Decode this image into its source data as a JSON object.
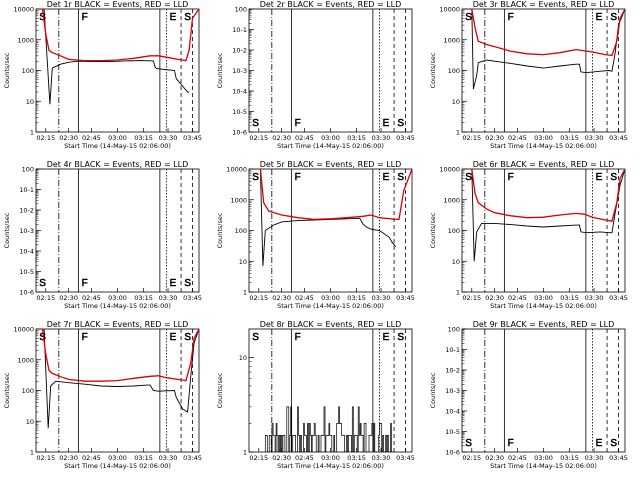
{
  "chart_data": [
    {
      "type": "line",
      "title": "Det 1r BLACK = Events, RED = LLD",
      "xlabel": "Start Time (14-May-15 02:06:00)",
      "ylabel": "Counts/sec",
      "ytick_labels": [
        "1",
        "10",
        "100",
        "1000",
        "10000"
      ],
      "ylim": [
        1,
        10000
      ],
      "yscale": "log",
      "xtick_labels": [
        "02:15",
        "02:30",
        "02:45",
        "03:00",
        "03:15",
        "03:30",
        "03:45"
      ],
      "markers": [
        "S",
        "F",
        "E",
        "S"
      ],
      "dark": true,
      "series": [
        {
          "color": "#000000",
          "x": [
            0,
            0.05,
            0.085,
            0.1,
            0.15,
            0.2,
            0.25,
            0.35,
            0.45,
            0.55,
            0.65,
            0.72,
            0.73,
            0.74,
            0.85,
            0.86,
            0.93,
            0.935,
            0.94
          ],
          "y": [
            10000,
            10000,
            8,
            120,
            160,
            185,
            200,
            195,
            195,
            205,
            210,
            205,
            130,
            115,
            100,
            55,
            20,
            20,
            20
          ]
        },
        {
          "color": "#dd0000",
          "x": [
            0,
            0.04,
            0.06,
            0.08,
            0.1,
            0.15,
            0.2,
            0.3,
            0.4,
            0.5,
            0.6,
            0.7,
            0.75,
            0.8,
            0.87,
            0.9,
            0.92,
            0.94,
            0.96,
            1.0
          ],
          "y": [
            10000,
            10000,
            1500,
            450,
            380,
            300,
            230,
            210,
            210,
            220,
            250,
            300,
            300,
            270,
            230,
            220,
            210,
            480,
            5000,
            10000
          ]
        }
      ]
    },
    {
      "type": "line",
      "title": "Det 2r BLACK = Events, RED = LLD",
      "xlabel": "Start Time (14-May-15 02:06:00)",
      "ylabel": "Counts/sec",
      "ytick_labels": [
        "10-6",
        "10-5",
        "10-4",
        "10-3",
        "10-2",
        "10-1",
        "100"
      ],
      "ylim": [
        1e-06,
        1
      ],
      "yscale": "log",
      "xtick_labels": [
        "02:15",
        "02:30",
        "02:45",
        "03:00",
        "03:15",
        "03:30",
        "03:45"
      ],
      "markers": [
        "S",
        "F",
        "E",
        "S"
      ],
      "dark": false,
      "series": []
    },
    {
      "type": "line",
      "title": "Det 3r BLACK = Events, RED = LLD",
      "xlabel": "Start Time (14-May-15 02:06:00)",
      "ylabel": "Counts/sec",
      "ytick_labels": [
        "1",
        "10",
        "100",
        "1000",
        "10000"
      ],
      "ylim": [
        1,
        10000
      ],
      "yscale": "log",
      "xtick_labels": [
        "02:15",
        "02:30",
        "02:45",
        "03:00",
        "03:15",
        "03:30",
        "03:45"
      ],
      "markers": [
        "S",
        "F",
        "E",
        "S"
      ],
      "dark": true,
      "series": [
        {
          "color": "#000000",
          "x": [
            0.03,
            0.06,
            0.07,
            0.09,
            0.1,
            0.15,
            0.2,
            0.3,
            0.4,
            0.5,
            0.6,
            0.7,
            0.72,
            0.73,
            0.76,
            0.85,
            0.9,
            0.92,
            0.94,
            0.96,
            1.0
          ],
          "y": [
            10000,
            10000,
            25,
            70,
            180,
            220,
            200,
            170,
            140,
            120,
            140,
            160,
            160,
            90,
            85,
            95,
            100,
            95,
            380,
            3000,
            10000
          ]
        },
        {
          "color": "#dd0000",
          "x": [
            0.03,
            0.06,
            0.08,
            0.1,
            0.15,
            0.2,
            0.3,
            0.4,
            0.5,
            0.6,
            0.7,
            0.8,
            0.88,
            0.92,
            0.95,
            0.97,
            1.0
          ],
          "y": [
            10000,
            10000,
            2500,
            900,
            700,
            600,
            420,
            350,
            330,
            380,
            480,
            400,
            330,
            310,
            900,
            5000,
            10000
          ]
        }
      ]
    },
    {
      "type": "line",
      "title": "Det 4r BLACK = Events, RED = LLD",
      "xlabel": "Start Time (14-May-15 02:06:00)",
      "ylabel": "Counts/sec",
      "ytick_labels": [
        "10-6",
        "10-5",
        "10-4",
        "10-3",
        "10-2",
        "10-1",
        "100"
      ],
      "ylim": [
        1e-06,
        1
      ],
      "yscale": "log",
      "xtick_labels": [
        "02:15",
        "02:30",
        "02:45",
        "03:00",
        "03:15",
        "03:30",
        "03:45"
      ],
      "markers": [
        "S",
        "F",
        "E",
        "S"
      ],
      "dark": false,
      "series": []
    },
    {
      "type": "line",
      "title": "Det 5r BLACK = Events, RED = LLD",
      "xlabel": "Start Time (14-May-15 02:06:00)",
      "ylabel": "Counts/sec",
      "ytick_labels": [
        "1",
        "10",
        "100",
        "1000",
        "10000"
      ],
      "ylim": [
        1,
        10000
      ],
      "yscale": "log",
      "xtick_labels": [
        "02:15",
        "02:30",
        "02:45",
        "03:00",
        "03:15",
        "03:30",
        "03:45"
      ],
      "markers": [
        "S",
        "F",
        "E",
        "S"
      ],
      "dark": true,
      "series": [
        {
          "color": "#000000",
          "x": [
            0.03,
            0.07,
            0.085,
            0.1,
            0.15,
            0.2,
            0.3,
            0.4,
            0.5,
            0.6,
            0.68,
            0.7,
            0.72,
            0.75,
            0.8,
            0.86,
            0.88,
            0.9
          ],
          "y": [
            10000,
            10000,
            7,
            100,
            150,
            190,
            210,
            220,
            230,
            240,
            250,
            160,
            130,
            110,
            100,
            60,
            40,
            30
          ]
        },
        {
          "color": "#dd0000",
          "x": [
            0.03,
            0.07,
            0.09,
            0.12,
            0.2,
            0.3,
            0.4,
            0.5,
            0.6,
            0.7,
            0.75,
            0.8,
            0.87,
            0.9,
            0.92,
            0.95,
            1.0
          ],
          "y": [
            10000,
            10000,
            800,
            430,
            320,
            260,
            230,
            240,
            260,
            290,
            320,
            260,
            240,
            230,
            230,
            2000,
            10000
          ]
        }
      ]
    },
    {
      "type": "line",
      "title": "Det 6r BLACK = Events, RED = LLD",
      "xlabel": "Start Time (14-May-15 02:06:00)",
      "ylabel": "Counts/sec",
      "ytick_labels": [
        "1",
        "10",
        "100",
        "1000",
        "10000"
      ],
      "ylim": [
        1,
        10000
      ],
      "yscale": "log",
      "xtick_labels": [
        "02:15",
        "02:30",
        "02:45",
        "03:00",
        "03:15",
        "03:30",
        "03:45"
      ],
      "markers": [
        "S",
        "F",
        "E",
        "S"
      ],
      "dark": true,
      "series": [
        {
          "color": "#000000",
          "x": [
            0.03,
            0.06,
            0.075,
            0.09,
            0.12,
            0.2,
            0.3,
            0.4,
            0.5,
            0.6,
            0.7,
            0.72,
            0.73,
            0.76,
            0.85,
            0.9,
            0.92,
            0.94,
            0.97,
            1.0
          ],
          "y": [
            10000,
            10000,
            10,
            90,
            170,
            170,
            155,
            140,
            130,
            140,
            150,
            150,
            90,
            85,
            90,
            85,
            85,
            380,
            3000,
            10000
          ]
        },
        {
          "color": "#dd0000",
          "x": [
            0.03,
            0.06,
            0.08,
            0.1,
            0.15,
            0.2,
            0.3,
            0.4,
            0.5,
            0.6,
            0.7,
            0.75,
            0.8,
            0.88,
            0.92,
            0.95,
            0.97,
            1.0
          ],
          "y": [
            10000,
            10000,
            1600,
            800,
            500,
            380,
            300,
            260,
            270,
            320,
            360,
            340,
            270,
            220,
            200,
            800,
            5000,
            10000
          ]
        }
      ]
    },
    {
      "type": "line",
      "title": "Det 7r BLACK = Events, RED = LLD",
      "xlabel": "Start Time (14-May-15 02:06:00)",
      "ylabel": "Counts/sec",
      "ytick_labels": [
        "1",
        "10",
        "100",
        "1000",
        "10000"
      ],
      "ylim": [
        1,
        10000
      ],
      "yscale": "log",
      "xtick_labels": [
        "02:15",
        "02:30",
        "02:45",
        "03:00",
        "03:15",
        "03:30",
        "03:45"
      ],
      "markers": [
        "S",
        "F",
        "E",
        "S"
      ],
      "dark": true,
      "series": [
        {
          "color": "#000000",
          "x": [
            0,
            0.05,
            0.075,
            0.09,
            0.12,
            0.2,
            0.3,
            0.4,
            0.5,
            0.6,
            0.68,
            0.7,
            0.72,
            0.75,
            0.85,
            0.86,
            0.9,
            0.93,
            0.95,
            0.97,
            1.0
          ],
          "y": [
            10000,
            10000,
            6,
            140,
            200,
            180,
            160,
            140,
            135,
            140,
            150,
            150,
            100,
            95,
            100,
            60,
            25,
            20,
            300,
            3500,
            10000
          ]
        },
        {
          "color": "#dd0000",
          "x": [
            0,
            0.04,
            0.06,
            0.08,
            0.1,
            0.15,
            0.2,
            0.3,
            0.4,
            0.5,
            0.6,
            0.7,
            0.75,
            0.8,
            0.87,
            0.9,
            0.92,
            0.95,
            0.97,
            1.0
          ],
          "y": [
            10000,
            10000,
            1500,
            450,
            360,
            280,
            230,
            200,
            200,
            210,
            250,
            290,
            300,
            260,
            230,
            220,
            210,
            800,
            5000,
            10000
          ]
        }
      ]
    },
    {
      "type": "line",
      "title": "Det 8r BLACK = Events, RED = LLD",
      "xlabel": "Start Time (14-May-15 02:06:00)",
      "ylabel": "Counts/sec",
      "ytick_labels": [
        "1",
        "10"
      ],
      "ylim": [
        1,
        20
      ],
      "yscale": "log",
      "xtick_labels": [
        "02:15",
        "02:30",
        "02:45",
        "03:00",
        "03:15",
        "03:30",
        "03:45"
      ],
      "markers": [
        "S",
        "F",
        "E",
        "S"
      ],
      "dark": true,
      "noisy": [
        0.1,
        0.88
      ],
      "series": []
    },
    {
      "type": "line",
      "title": "Det 9r BLACK = Events, RED = LLD",
      "xlabel": "Start Time (14-May-15 02:06:00)",
      "ylabel": "Counts/sec",
      "ytick_labels": [
        "10-6",
        "10-5",
        "10-4",
        "10-3",
        "10-2",
        "10-1",
        "100"
      ],
      "ylim": [
        1e-06,
        1
      ],
      "yscale": "log",
      "xtick_labels": [
        "02:15",
        "02:30",
        "02:45",
        "03:00",
        "03:15",
        "03:30",
        "03:45"
      ],
      "markers": [
        "S",
        "F",
        "E",
        "S"
      ],
      "dark": false,
      "series": []
    }
  ]
}
